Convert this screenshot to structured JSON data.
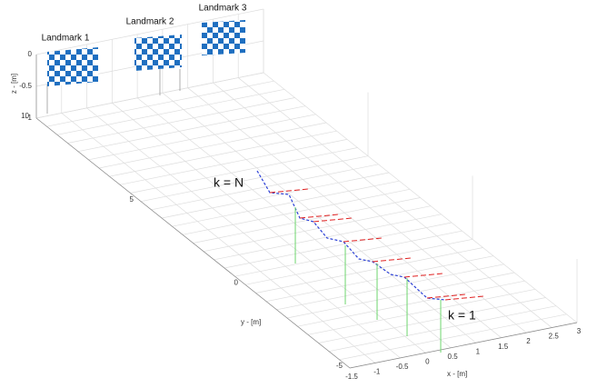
{
  "landmarks": [
    "Landmark 1",
    "Landmark 2",
    "Landmark 3"
  ],
  "annotations": {
    "start": "k = N",
    "end": "k = 1"
  },
  "axes": {
    "x": {
      "label": "x - [m]",
      "ticks": [
        "-1.5",
        "-1",
        "-0.5",
        "0",
        "0.5",
        "1",
        "1.5",
        "2",
        "2.5",
        "3"
      ]
    },
    "y": {
      "label": "y - [m]",
      "ticks": [
        "10",
        "5",
        "0",
        "-5"
      ]
    },
    "z": {
      "label": "z - [m]",
      "ticks": [
        "0",
        "-0.5",
        "-1"
      ]
    }
  }
}
